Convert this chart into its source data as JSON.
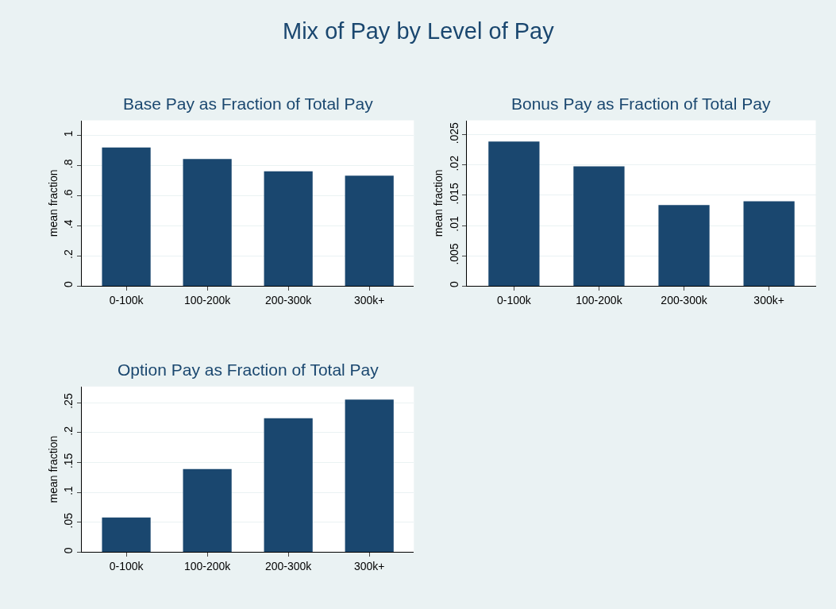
{
  "chart_data": [
    {
      "type": "bar",
      "title": "Base Pay as Fraction of Total Pay",
      "ylabel": "mean fraction",
      "annotations": [
        "Mix of Pay by Level of Pay"
      ],
      "categories": [
        "0-100k",
        "100-200k",
        "200-300k",
        "300k+"
      ],
      "values": [
        0.92,
        0.843,
        0.761,
        0.733
      ],
      "color": "#1a476f",
      "ylim": [
        0,
        1.1
      ],
      "yticks": [
        0,
        {
          "value": 0.2,
          "label": ".2"
        },
        {
          "value": 0.4,
          "label": ".4"
        },
        {
          "value": 0.6,
          "label": ".6"
        },
        {
          "value": 0.8,
          "label": ".8"
        },
        1
      ],
      "grid": "y"
    },
    {
      "type": "bar",
      "title": "Bonus Pay as Fraction of Total Pay",
      "ylabel": "mean fraction",
      "categories": [
        "0-100k",
        "100-200k",
        "200-300k",
        "300k+"
      ],
      "values": [
        0.0239,
        0.0198,
        0.0134,
        0.014
      ],
      "color": "#1a476f",
      "ylim": [
        0,
        0.0274
      ],
      "yticks": [
        0,
        {
          "value": 0.005,
          "label": ".005"
        },
        {
          "value": 0.01,
          "label": ".01"
        },
        {
          "value": 0.015,
          "label": ".015"
        },
        {
          "value": 0.02,
          "label": ".02"
        },
        {
          "value": 0.025,
          "label": ".025"
        }
      ],
      "grid": "y"
    },
    {
      "type": "bar",
      "title": "Option Pay as Fraction of Total Pay",
      "ylabel": "mean fraction",
      "categories": [
        "0-100k",
        "100-200k",
        "200-300k",
        "300k+"
      ],
      "values": [
        0.058,
        0.139,
        0.224,
        0.255
      ],
      "color": "#1a476f",
      "ylim": [
        0,
        0.277
      ],
      "yticks": [
        0,
        {
          "value": 0.05,
          "label": ".05"
        },
        {
          "value": 0.1,
          "label": ".1"
        },
        {
          "value": 0.15,
          "label": ".15"
        },
        {
          "value": 0.2,
          "label": ".2"
        },
        {
          "value": 0.25,
          "label": ".25"
        }
      ],
      "grid": "y"
    }
  ]
}
